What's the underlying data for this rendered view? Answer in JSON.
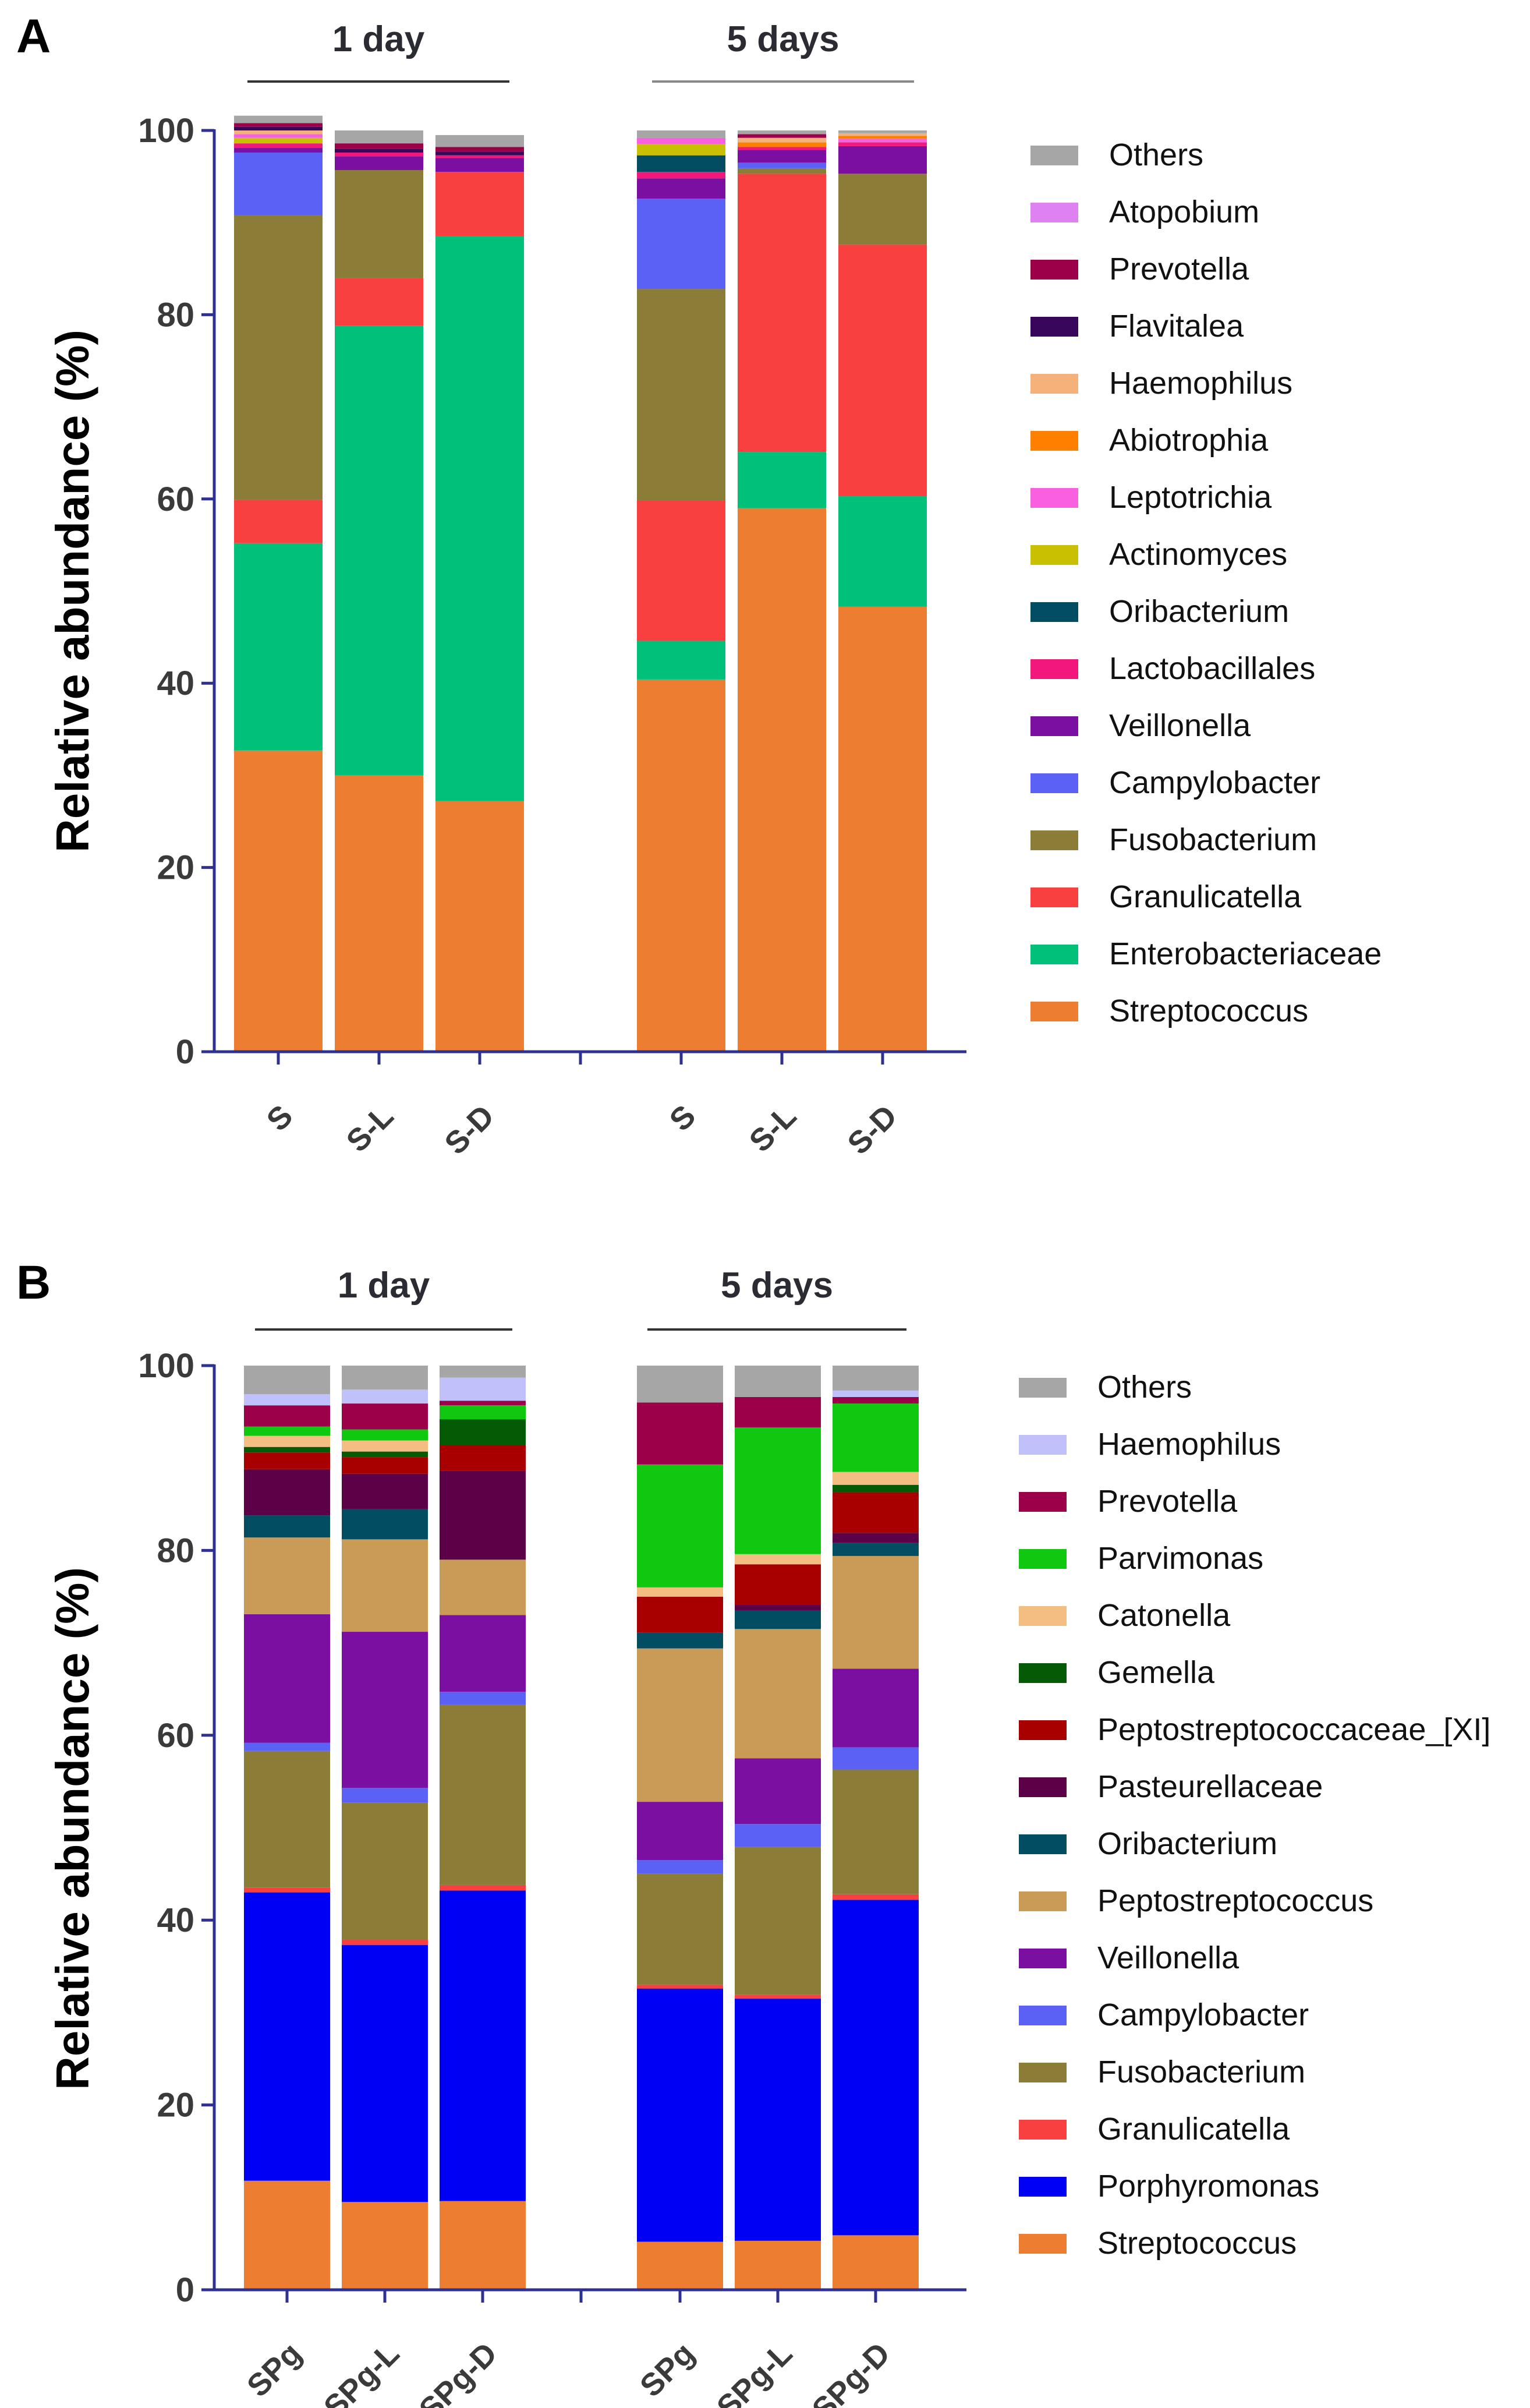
{
  "panels": [
    {
      "label": "A",
      "groups": [
        {
          "label": "1 day",
          "categories": [
            "S",
            "S-L",
            "S-D"
          ]
        },
        {
          "label": "5 days",
          "categories": [
            "S",
            "S-L",
            "S-D"
          ]
        }
      ]
    },
    {
      "label": "B",
      "groups": [
        {
          "label": "1 day",
          "categories": [
            "SPg",
            "SPg-L",
            "SPg-D"
          ]
        },
        {
          "label": "5 days",
          "categories": [
            "SPg",
            "SPg-L",
            "SPg-D"
          ]
        }
      ]
    }
  ],
  "chart_data": [
    {
      "type": "bar",
      "stacked": true,
      "panel": "A",
      "categories": [
        "S",
        "S-L",
        "S-D",
        "S",
        "S-L",
        "S-D"
      ],
      "groups": [
        "1 day",
        "1 day",
        "1 day",
        "5 days",
        "5 days",
        "5 days"
      ],
      "ylabel": "Relative abundance (%)",
      "xlabel": "",
      "ylim": [
        0,
        100
      ],
      "yticks": [
        0,
        20,
        40,
        60,
        80,
        100
      ],
      "legend_position": "right",
      "series": [
        {
          "name": "Streptococcus",
          "color": "#ED7D31",
          "values": [
            32.7,
            30.0,
            27.2,
            40.4,
            59.0,
            48.3
          ]
        },
        {
          "name": "Enterobacteriaceae",
          "color": "#00C07A",
          "values": [
            22.5,
            48.8,
            61.3,
            4.2,
            6.1,
            12.0
          ]
        },
        {
          "name": "Granulicatella",
          "color": "#F94040",
          "values": [
            4.7,
            5.2,
            7.0,
            15.2,
            30.2,
            27.3
          ]
        },
        {
          "name": "Fusobacterium",
          "color": "#8B7D38",
          "values": [
            30.9,
            11.7,
            0,
            23.0,
            0.6,
            7.7
          ]
        },
        {
          "name": "Campylobacter",
          "color": "#5B61F5",
          "values": [
            6.8,
            0,
            0,
            9.8,
            0.6,
            0
          ]
        },
        {
          "name": "Veillonella",
          "color": "#7B0FA1",
          "values": [
            0.5,
            1.5,
            1.5,
            2.2,
            1.4,
            3.0
          ]
        },
        {
          "name": "Lactobacillales",
          "color": "#F2177A",
          "values": [
            0.5,
            0.4,
            0.3,
            0.7,
            0.3,
            0.4
          ]
        },
        {
          "name": "Oribacterium",
          "color": "#034D63",
          "values": [
            0,
            0,
            0,
            1.8,
            0,
            0
          ]
        },
        {
          "name": "Actinomyces",
          "color": "#C8C000",
          "values": [
            0.6,
            0,
            0,
            1.2,
            0,
            0
          ]
        },
        {
          "name": "Leptotrichia",
          "color": "#F860E0",
          "values": [
            0.4,
            0,
            0,
            0.7,
            0,
            0.4
          ]
        },
        {
          "name": "Abiotrophia",
          "color": "#FF8000",
          "values": [
            0,
            0,
            0,
            0,
            0.5,
            0.3
          ]
        },
        {
          "name": "Haemophilus",
          "color": "#F4B27A",
          "values": [
            0.4,
            0,
            0,
            0,
            0.5,
            0.3
          ]
        },
        {
          "name": "Flavitalea",
          "color": "#38065A",
          "values": [
            0.4,
            0.4,
            0.4,
            0,
            0,
            0
          ]
        },
        {
          "name": "Prevotella",
          "color": "#9C0048",
          "values": [
            0.4,
            0.6,
            0.5,
            0,
            0.4,
            0
          ]
        },
        {
          "name": "Atopobium",
          "color": "#DD82F0",
          "values": [
            0,
            0,
            0,
            0,
            0,
            0
          ]
        },
        {
          "name": "Others",
          "color": "#A6A6A6",
          "values": [
            0.8,
            1.4,
            1.3,
            0.8,
            0.4,
            0.3
          ]
        }
      ]
    },
    {
      "type": "bar",
      "stacked": true,
      "panel": "B",
      "categories": [
        "SPg",
        "SPg-L",
        "SPg-D",
        "SPg",
        "SPg-L",
        "SPg-D"
      ],
      "groups": [
        "1 day",
        "1 day",
        "1 day",
        "5 days",
        "5 days",
        "5 days"
      ],
      "ylabel": "Relative abundance (%)",
      "xlabel": "",
      "ylim": [
        0,
        100
      ],
      "yticks": [
        0,
        20,
        40,
        60,
        80,
        100
      ],
      "legend_position": "right",
      "series": [
        {
          "name": "Streptococcus",
          "color": "#ED7D31",
          "values": [
            11.8,
            9.5,
            9.6,
            5.2,
            5.3,
            5.9
          ]
        },
        {
          "name": "Porphyromonas",
          "color": "#0000F5",
          "values": [
            31.2,
            27.8,
            33.6,
            27.4,
            26.2,
            36.3
          ]
        },
        {
          "name": "Granulicatella",
          "color": "#F94040",
          "values": [
            0.5,
            0.6,
            0.6,
            0.4,
            0.4,
            0.6
          ]
        },
        {
          "name": "Fusobacterium",
          "color": "#8B7D38",
          "values": [
            14.8,
            14.8,
            19.5,
            12.0,
            16.0,
            13.5
          ]
        },
        {
          "name": "Campylobacter",
          "color": "#5B61F5",
          "values": [
            0.9,
            1.6,
            1.4,
            1.5,
            2.5,
            2.4
          ]
        },
        {
          "name": "Veillonella",
          "color": "#7B0FA1",
          "values": [
            13.9,
            16.9,
            8.3,
            6.3,
            7.1,
            8.5
          ]
        },
        {
          "name": "Peptostreptococcus",
          "color": "#C99B57",
          "values": [
            8.3,
            10.0,
            6.0,
            16.6,
            14.0,
            12.2
          ]
        },
        {
          "name": "Oribacterium",
          "color": "#034D63",
          "values": [
            2.4,
            3.3,
            0,
            1.7,
            2.0,
            1.4
          ]
        },
        {
          "name": "Pasteurellaceae",
          "color": "#5C0047",
          "values": [
            5.0,
            3.8,
            9.6,
            0,
            0.6,
            1.1
          ]
        },
        {
          "name": "Peptostreptococcaceae_[XI]",
          "color": "#A80000",
          "values": [
            1.8,
            1.8,
            2.8,
            3.9,
            4.4,
            4.4
          ]
        },
        {
          "name": "Gemella",
          "color": "#055A05",
          "values": [
            0.6,
            0.6,
            2.8,
            0,
            0,
            0.8
          ]
        },
        {
          "name": "Catonella",
          "color": "#F4BE82",
          "values": [
            1.2,
            1.2,
            0,
            1.0,
            1.1,
            1.4
          ]
        },
        {
          "name": "Parvimonas",
          "color": "#10C810",
          "values": [
            1.0,
            1.2,
            1.5,
            13.3,
            13.7,
            7.4
          ]
        },
        {
          "name": "Prevotella",
          "color": "#9C0048",
          "values": [
            2.3,
            2.8,
            0.5,
            6.7,
            3.3,
            0.7
          ]
        },
        {
          "name": "Haemophilus",
          "color": "#C0C0FA",
          "values": [
            1.2,
            1.5,
            2.5,
            0,
            0,
            0.7
          ]
        },
        {
          "name": "Others",
          "color": "#A6A6A6",
          "values": [
            3.1,
            2.6,
            1.3,
            4.0,
            3.4,
            2.7
          ]
        }
      ]
    }
  ]
}
